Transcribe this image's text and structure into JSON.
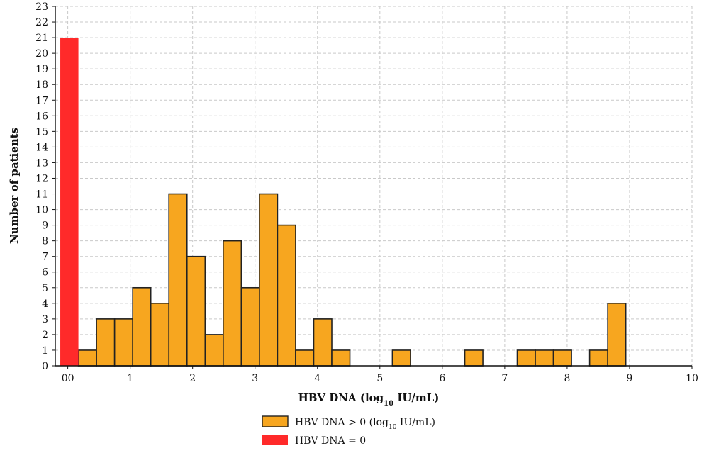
{
  "chart_data": {
    "type": "bar",
    "xlabel": "HBV DNA (log",
    "xlabel_sub": "10",
    "xlabel_suffix": " IU/mL)",
    "ylabel": "Number of patients",
    "ylim": [
      0,
      23
    ],
    "xlim": [
      -0.2,
      10
    ],
    "grid": true,
    "x_tick_labels": [
      "00",
      "1",
      "2",
      "3",
      "4",
      "5",
      "6",
      "7",
      "8",
      "9",
      "10"
    ],
    "x_tick_values": [
      0,
      1,
      2,
      3,
      4,
      5,
      6,
      7,
      8,
      9,
      10
    ],
    "y_tick_values": [
      0,
      1,
      2,
      3,
      4,
      5,
      6,
      7,
      8,
      9,
      10,
      11,
      12,
      13,
      14,
      15,
      16,
      17,
      18,
      19,
      20,
      21,
      22,
      23
    ],
    "bin_width": 0.29,
    "series": [
      {
        "name": "HBV DNA > 0 (log10 IU/mL)",
        "color": "#f7a61f",
        "bins": [
          {
            "start": 0.17,
            "value": 1
          },
          {
            "start": 0.46,
            "value": 3
          },
          {
            "start": 0.75,
            "value": 3
          },
          {
            "start": 1.04,
            "value": 5
          },
          {
            "start": 1.33,
            "value": 4
          },
          {
            "start": 1.62,
            "value": 11
          },
          {
            "start": 1.91,
            "value": 7
          },
          {
            "start": 2.2,
            "value": 2
          },
          {
            "start": 2.49,
            "value": 8
          },
          {
            "start": 2.78,
            "value": 5
          },
          {
            "start": 3.07,
            "value": 11
          },
          {
            "start": 3.36,
            "value": 9
          },
          {
            "start": 3.65,
            "value": 1
          },
          {
            "start": 3.94,
            "value": 3
          },
          {
            "start": 4.23,
            "value": 1
          },
          {
            "start": 5.2,
            "value": 1
          },
          {
            "start": 6.36,
            "value": 1
          },
          {
            "start": 7.2,
            "value": 1
          },
          {
            "start": 7.49,
            "value": 1
          },
          {
            "start": 7.78,
            "value": 1
          },
          {
            "start": 8.36,
            "value": 1
          },
          {
            "start": 8.65,
            "value": 4
          }
        ]
      },
      {
        "name": "HBV DNA = 0",
        "color": "#ff2a2a",
        "bins": [
          {
            "start": -0.12,
            "value": 21
          }
        ]
      }
    ],
    "legend": {
      "placement": "bottom-center",
      "items": [
        {
          "text": "HBV DNA > 0 (log",
          "sub": "10",
          "suffix": " IU/mL)",
          "color": "#f7a61f"
        },
        {
          "text": "HBV DNA = 0",
          "sub": "",
          "suffix": "",
          "color": "#ff2a2a"
        }
      ]
    }
  }
}
